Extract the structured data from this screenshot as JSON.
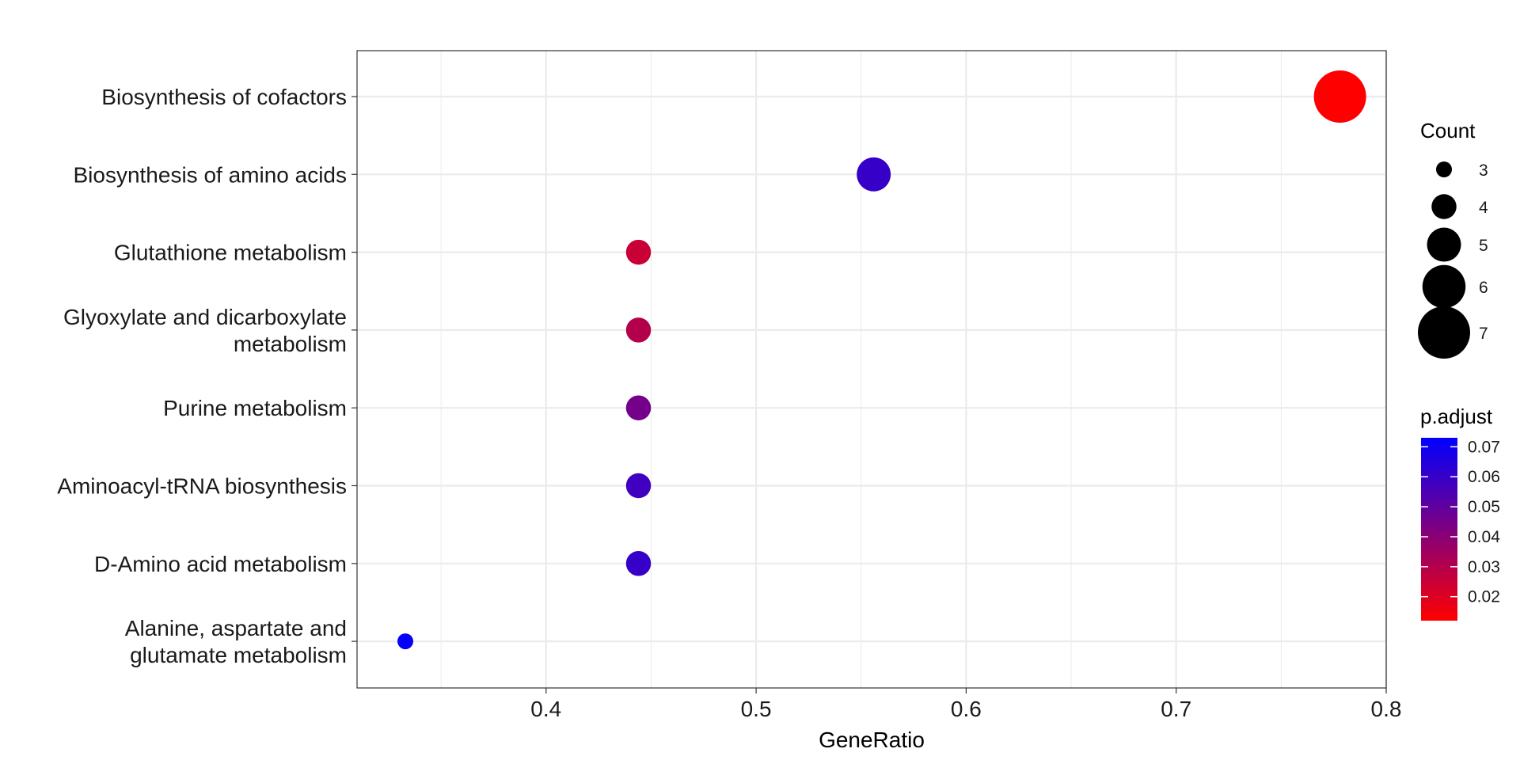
{
  "chart_data": {
    "type": "scatter",
    "title": "",
    "xlabel": "GeneRatio",
    "ylabel": "",
    "xlim": [
      0.31,
      0.8
    ],
    "x_ticks": [
      0.4,
      0.5,
      0.6,
      0.7,
      0.8
    ],
    "x_tick_labels": [
      "0.4",
      "0.5",
      "0.6",
      "0.7",
      "0.8"
    ],
    "grid": true,
    "legend_position": "right",
    "categories": [
      [
        "Biosynthesis of cofactors"
      ],
      [
        "Biosynthesis of amino acids"
      ],
      [
        "Glutathione metabolism"
      ],
      [
        "Glyoxylate and dicarboxylate",
        "metabolism"
      ],
      [
        "Purine metabolism"
      ],
      [
        "Aminoacyl-tRNA biosynthesis"
      ],
      [
        "D-Amino acid metabolism"
      ],
      [
        "Alanine, aspartate and",
        "glutamate metabolism"
      ]
    ],
    "points": [
      {
        "gene_ratio": 0.778,
        "count": 7,
        "p_adjust": 0.012
      },
      {
        "gene_ratio": 0.556,
        "count": 5,
        "p_adjust": 0.06
      },
      {
        "gene_ratio": 0.444,
        "count": 4,
        "p_adjust": 0.025
      },
      {
        "gene_ratio": 0.444,
        "count": 4,
        "p_adjust": 0.03
      },
      {
        "gene_ratio": 0.444,
        "count": 4,
        "p_adjust": 0.045
      },
      {
        "gene_ratio": 0.444,
        "count": 4,
        "p_adjust": 0.058
      },
      {
        "gene_ratio": 0.444,
        "count": 4,
        "p_adjust": 0.06
      },
      {
        "gene_ratio": 0.333,
        "count": 3,
        "p_adjust": 0.072
      }
    ],
    "size_legend": {
      "title": "Count",
      "values": [
        3,
        4,
        5,
        6,
        7
      ],
      "labels": [
        "3",
        "4",
        "5",
        "6",
        "7"
      ]
    },
    "color_legend": {
      "title": "p.adjust",
      "range": [
        0.012,
        0.073
      ],
      "ticks": [
        0.07,
        0.06,
        0.05,
        0.04,
        0.03,
        0.02
      ],
      "tick_labels": [
        "0.07",
        "0.06",
        "0.05",
        "0.04",
        "0.03",
        "0.02"
      ],
      "low_color": "#FF0000",
      "high_color": "#0000FF"
    }
  }
}
